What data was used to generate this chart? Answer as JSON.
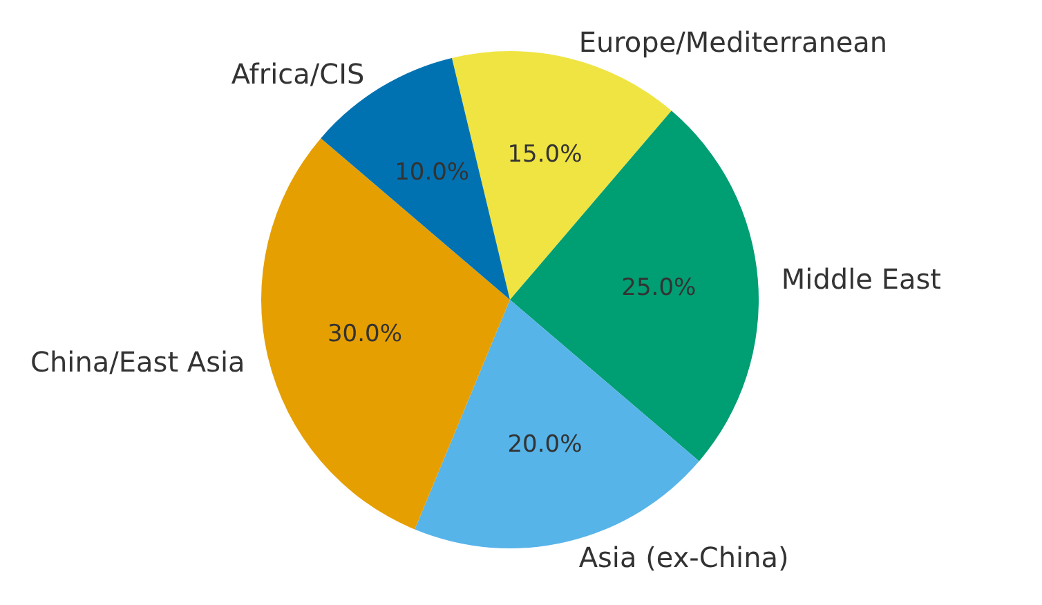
{
  "chart_data": {
    "type": "pie",
    "categories": [
      "Europe/Mediterranean",
      "Middle East",
      "Asia (ex-China)",
      "China/East Asia",
      "Africa/CIS"
    ],
    "values": [
      15,
      25,
      20,
      30,
      10
    ],
    "colors": [
      "#f0e442",
      "#009e73",
      "#56b4e9",
      "#e69f00",
      "#0072b2"
    ],
    "value_labels": [
      "15.0%",
      "25.0%",
      "20.0%",
      "30.0%",
      "10.0%"
    ]
  }
}
